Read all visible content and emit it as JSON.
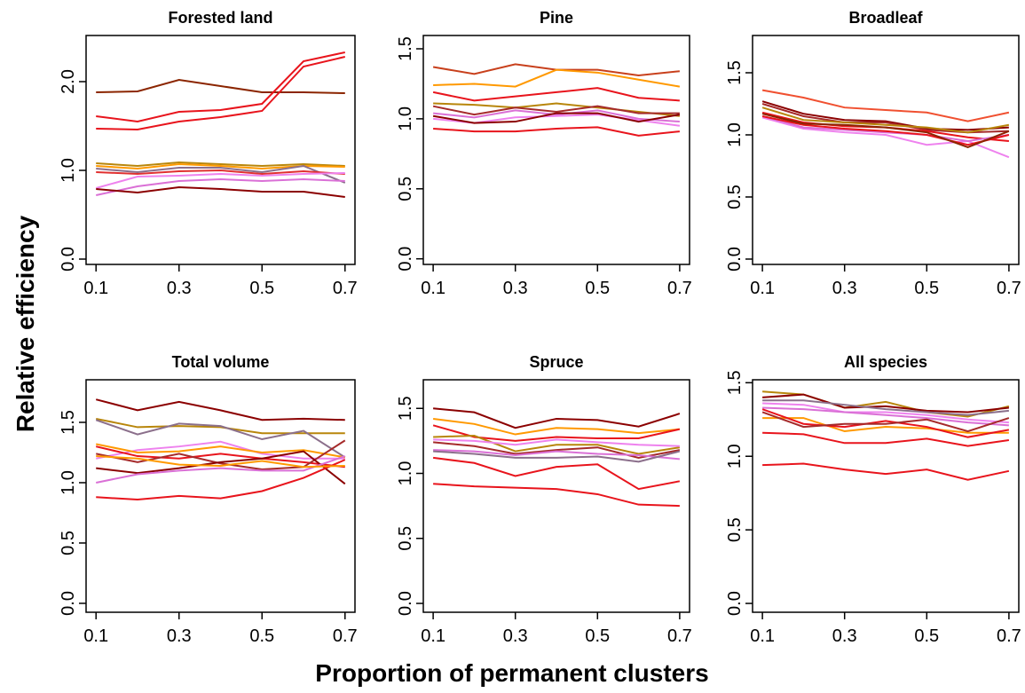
{
  "ylabel": "Relative efficiency",
  "xlabel": "Proportion of permanent clusters",
  "chart_data": [
    {
      "type": "line",
      "title": "Forested land",
      "x": [
        0.1,
        0.2,
        0.3,
        0.4,
        0.5,
        0.6,
        0.7
      ],
      "xlim": [
        0.076,
        0.724
      ],
      "xticks": [
        0.1,
        0.3,
        0.5,
        0.7
      ],
      "ylim": [
        -0.06,
        2.52
      ],
      "yticks": [
        {
          "value": 0,
          "label": "0.0"
        },
        {
          "value": 1,
          "label": "1.0"
        },
        {
          "value": 2,
          "label": "2.0"
        }
      ],
      "series": [
        {
          "color": "#8b2500",
          "values": [
            1.88,
            1.89,
            2.02,
            1.95,
            1.88,
            1.88,
            1.87
          ]
        },
        {
          "color": "#e8141c",
          "values": [
            1.61,
            1.55,
            1.66,
            1.68,
            1.75,
            2.23,
            2.33
          ]
        },
        {
          "color": "#e8141c",
          "values": [
            1.47,
            1.46,
            1.55,
            1.6,
            1.67,
            2.17,
            2.28
          ]
        },
        {
          "color": "#b8860b",
          "values": [
            1.08,
            1.05,
            1.09,
            1.07,
            1.05,
            1.07,
            1.05
          ]
        },
        {
          "color": "#ff9900",
          "values": [
            1.05,
            1.02,
            1.07,
            1.05,
            1.02,
            1.05,
            1.04
          ]
        },
        {
          "color": "#8b6f8b",
          "values": [
            1.02,
            0.98,
            1.03,
            1.03,
            0.98,
            1.05,
            0.86
          ]
        },
        {
          "color": "#e03030",
          "values": [
            0.98,
            0.96,
            0.99,
            1.0,
            0.96,
            0.99,
            0.96
          ]
        },
        {
          "color": "#ee82ee",
          "values": [
            0.8,
            0.93,
            0.94,
            0.96,
            0.94,
            0.96,
            0.97
          ]
        },
        {
          "color": "#da70d6",
          "values": [
            0.72,
            0.82,
            0.88,
            0.9,
            0.88,
            0.9,
            0.88
          ]
        },
        {
          "color": "#8b0000",
          "values": [
            0.79,
            0.75,
            0.81,
            0.79,
            0.76,
            0.76,
            0.7
          ]
        }
      ]
    },
    {
      "type": "line",
      "title": "Pine",
      "x": [
        0.1,
        0.2,
        0.3,
        0.4,
        0.5,
        0.6,
        0.7
      ],
      "xlim": [
        0.076,
        0.724
      ],
      "xticks": [
        0.1,
        0.3,
        0.5,
        0.7
      ],
      "ylim": [
        -0.04,
        1.595
      ],
      "yticks": [
        {
          "value": 0,
          "label": "0.0"
        },
        0.5,
        {
          "value": 1,
          "label": "1.0"
        },
        1.5
      ],
      "series": [
        {
          "color": "#c8401c",
          "values": [
            1.37,
            1.32,
            1.39,
            1.35,
            1.35,
            1.31,
            1.34
          ]
        },
        {
          "color": "#ff9900",
          "values": [
            1.24,
            1.25,
            1.23,
            1.35,
            1.33,
            1.28,
            1.23
          ]
        },
        {
          "color": "#e8141c",
          "values": [
            1.19,
            1.13,
            1.16,
            1.19,
            1.22,
            1.15,
            1.13
          ]
        },
        {
          "color": "#b8860b",
          "values": [
            1.11,
            1.1,
            1.08,
            1.11,
            1.08,
            1.05,
            1.02
          ]
        },
        {
          "color": "#a52a2a",
          "values": [
            1.09,
            1.03,
            1.08,
            1.05,
            1.09,
            1.04,
            1.04
          ]
        },
        {
          "color": "#da70d6",
          "values": [
            1.04,
            1.01,
            1.06,
            1.03,
            1.06,
            1.0,
            0.98
          ]
        },
        {
          "color": "#ee82ee",
          "values": [
            1.0,
            0.97,
            1.01,
            1.02,
            1.03,
            0.99,
            0.95
          ]
        },
        {
          "color": "#8b0000",
          "values": [
            1.02,
            0.97,
            0.98,
            1.04,
            1.04,
            0.98,
            1.03
          ]
        },
        {
          "color": "#e8141c",
          "values": [
            0.93,
            0.91,
            0.91,
            0.93,
            0.94,
            0.88,
            0.91
          ]
        }
      ]
    },
    {
      "type": "line",
      "title": "Broadleaf",
      "x": [
        0.1,
        0.2,
        0.3,
        0.4,
        0.5,
        0.6,
        0.7
      ],
      "xlim": [
        0.076,
        0.724
      ],
      "xticks": [
        0.1,
        0.3,
        0.5,
        0.7
      ],
      "ylim": [
        -0.043,
        1.8
      ],
      "yticks": [
        {
          "value": 0,
          "label": "0.0"
        },
        0.5,
        {
          "value": 1,
          "label": "1.0"
        },
        1.5
      ],
      "series": [
        {
          "color": "#f05030",
          "values": [
            1.36,
            1.3,
            1.22,
            1.2,
            1.18,
            1.11,
            1.18
          ]
        },
        {
          "color": "#8b0000",
          "values": [
            1.27,
            1.17,
            1.12,
            1.11,
            1.05,
            1.04,
            1.06
          ]
        },
        {
          "color": "#a52a2a",
          "values": [
            1.25,
            1.15,
            1.1,
            1.1,
            1.04,
            1.02,
            1.03
          ]
        },
        {
          "color": "#b8860b",
          "values": [
            1.22,
            1.12,
            1.1,
            1.08,
            1.06,
            1.02,
            1.08
          ]
        },
        {
          "color": "#e8141c",
          "values": [
            1.18,
            1.1,
            1.07,
            1.06,
            1.03,
            0.98,
            0.95
          ]
        },
        {
          "color": "#ee82ee",
          "values": [
            1.14,
            1.05,
            1.02,
            1.0,
            0.92,
            0.95,
            0.82
          ]
        },
        {
          "color": "#da70d6",
          "values": [
            1.15,
            1.06,
            1.04,
            1.02,
            1.0,
            0.95,
            1.0
          ]
        },
        {
          "color": "#e8141c",
          "values": [
            1.15,
            1.08,
            1.05,
            1.03,
            1.0,
            0.92,
            1.0
          ]
        },
        {
          "color": "#8b2500",
          "values": [
            1.17,
            1.09,
            1.08,
            1.06,
            1.02,
            0.9,
            1.03
          ]
        }
      ]
    },
    {
      "type": "line",
      "title": "Total volume",
      "x": [
        0.1,
        0.2,
        0.3,
        0.4,
        0.5,
        0.6,
        0.7
      ],
      "xlim": [
        0.076,
        0.724
      ],
      "xticks": [
        0.1,
        0.3,
        0.5,
        0.7
      ],
      "ylim": [
        -0.074,
        1.853
      ],
      "yticks": [
        {
          "value": 0,
          "label": "0.0"
        },
        0.5,
        {
          "value": 1,
          "label": "1.0"
        },
        1.5
      ],
      "series": [
        {
          "color": "#8b0000",
          "values": [
            1.69,
            1.6,
            1.67,
            1.6,
            1.52,
            1.53,
            1.52
          ]
        },
        {
          "color": "#b8860b",
          "values": [
            1.53,
            1.46,
            1.47,
            1.46,
            1.41,
            1.41,
            1.41
          ]
        },
        {
          "color": "#8b6f8b",
          "values": [
            1.52,
            1.4,
            1.49,
            1.47,
            1.36,
            1.43,
            1.21
          ]
        },
        {
          "color": "#ee82ee",
          "values": [
            1.2,
            1.27,
            1.3,
            1.34,
            1.24,
            1.2,
            1.2
          ]
        },
        {
          "color": "#ff9900",
          "values": [
            1.32,
            1.25,
            1.26,
            1.3,
            1.25,
            1.27,
            1.21
          ]
        },
        {
          "color": "#e8141c",
          "values": [
            1.3,
            1.22,
            1.2,
            1.24,
            1.2,
            1.17,
            1.13
          ]
        },
        {
          "color": "#a52a2a",
          "values": [
            1.24,
            1.17,
            1.24,
            1.16,
            1.11,
            1.13,
            1.35
          ]
        },
        {
          "color": "#8b0000",
          "values": [
            1.12,
            1.08,
            1.12,
            1.17,
            1.2,
            1.26,
            0.99
          ]
        },
        {
          "color": "#da70d6",
          "values": [
            1.0,
            1.07,
            1.1,
            1.12,
            1.1,
            1.1,
            1.22
          ]
        },
        {
          "color": "#e8141c",
          "values": [
            0.88,
            0.86,
            0.89,
            0.87,
            0.93,
            1.04,
            1.19
          ]
        },
        {
          "color": "#ff9900",
          "values": [
            1.22,
            1.2,
            1.15,
            1.14,
            1.18,
            1.13,
            1.14
          ]
        }
      ]
    },
    {
      "type": "line",
      "title": "Spruce",
      "x": [
        0.1,
        0.2,
        0.3,
        0.4,
        0.5,
        0.6,
        0.7
      ],
      "xlim": [
        0.076,
        0.724
      ],
      "xticks": [
        0.1,
        0.3,
        0.5,
        0.7
      ],
      "ylim": [
        -0.068,
        1.72
      ],
      "yticks": [
        {
          "value": 0,
          "label": "0.0"
        },
        0.5,
        {
          "value": 1,
          "label": "1.0"
        },
        1.5
      ],
      "series": [
        {
          "color": "#8b0000",
          "values": [
            1.5,
            1.47,
            1.35,
            1.42,
            1.41,
            1.36,
            1.46
          ]
        },
        {
          "color": "#ff9900",
          "values": [
            1.42,
            1.38,
            1.3,
            1.35,
            1.34,
            1.31,
            1.34
          ]
        },
        {
          "color": "#e8141c",
          "values": [
            1.37,
            1.28,
            1.25,
            1.28,
            1.27,
            1.27,
            1.34
          ]
        },
        {
          "color": "#b8860b",
          "values": [
            1.28,
            1.29,
            1.17,
            1.22,
            1.22,
            1.15,
            1.2
          ]
        },
        {
          "color": "#ee82ee",
          "values": [
            1.26,
            1.25,
            1.22,
            1.26,
            1.24,
            1.22,
            1.21
          ]
        },
        {
          "color": "#a52a2a",
          "values": [
            1.24,
            1.21,
            1.15,
            1.18,
            1.2,
            1.12,
            1.18
          ]
        },
        {
          "color": "#da70d6",
          "values": [
            1.18,
            1.17,
            1.14,
            1.17,
            1.15,
            1.14,
            1.11
          ]
        },
        {
          "color": "#8b6f8b",
          "values": [
            1.17,
            1.15,
            1.12,
            1.12,
            1.13,
            1.09,
            1.17
          ]
        },
        {
          "color": "#e8141c",
          "values": [
            1.12,
            1.08,
            0.98,
            1.05,
            1.07,
            0.88,
            0.94
          ]
        },
        {
          "color": "#e8141c",
          "values": [
            0.92,
            0.9,
            0.89,
            0.88,
            0.84,
            0.76,
            0.75
          ]
        }
      ]
    },
    {
      "type": "line",
      "title": "All species",
      "x": [
        0.1,
        0.2,
        0.3,
        0.4,
        0.5,
        0.6,
        0.7
      ],
      "xlim": [
        0.076,
        0.724
      ],
      "xticks": [
        0.1,
        0.3,
        0.5,
        0.7
      ],
      "ylim": [
        -0.06,
        1.52
      ],
      "yticks": [
        {
          "value": 0,
          "label": "0.0"
        },
        0.5,
        {
          "value": 1,
          "label": "1.0"
        },
        1.5
      ],
      "series": [
        {
          "color": "#b8860b",
          "values": [
            1.44,
            1.42,
            1.33,
            1.37,
            1.3,
            1.27,
            1.34
          ]
        },
        {
          "color": "#8b0000",
          "values": [
            1.4,
            1.42,
            1.33,
            1.34,
            1.31,
            1.3,
            1.33
          ]
        },
        {
          "color": "#8b6f8b",
          "values": [
            1.38,
            1.38,
            1.35,
            1.32,
            1.3,
            1.28,
            1.31
          ]
        },
        {
          "color": "#ee82ee",
          "values": [
            1.36,
            1.35,
            1.3,
            1.3,
            1.28,
            1.25,
            1.23
          ]
        },
        {
          "color": "#da70d6",
          "values": [
            1.33,
            1.32,
            1.3,
            1.28,
            1.26,
            1.23,
            1.21
          ]
        },
        {
          "color": "#ff9900",
          "values": [
            1.26,
            1.26,
            1.17,
            1.2,
            1.19,
            1.16,
            1.16
          ]
        },
        {
          "color": "#e8141c",
          "values": [
            1.32,
            1.22,
            1.2,
            1.24,
            1.2,
            1.13,
            1.18
          ]
        },
        {
          "color": "#a52a2a",
          "values": [
            1.3,
            1.2,
            1.22,
            1.22,
            1.25,
            1.17,
            1.26
          ]
        },
        {
          "color": "#e8141c",
          "values": [
            1.16,
            1.15,
            1.09,
            1.09,
            1.12,
            1.07,
            1.11
          ]
        },
        {
          "color": "#e8141c",
          "values": [
            0.94,
            0.95,
            0.91,
            0.88,
            0.91,
            0.84,
            0.9
          ]
        }
      ]
    }
  ]
}
